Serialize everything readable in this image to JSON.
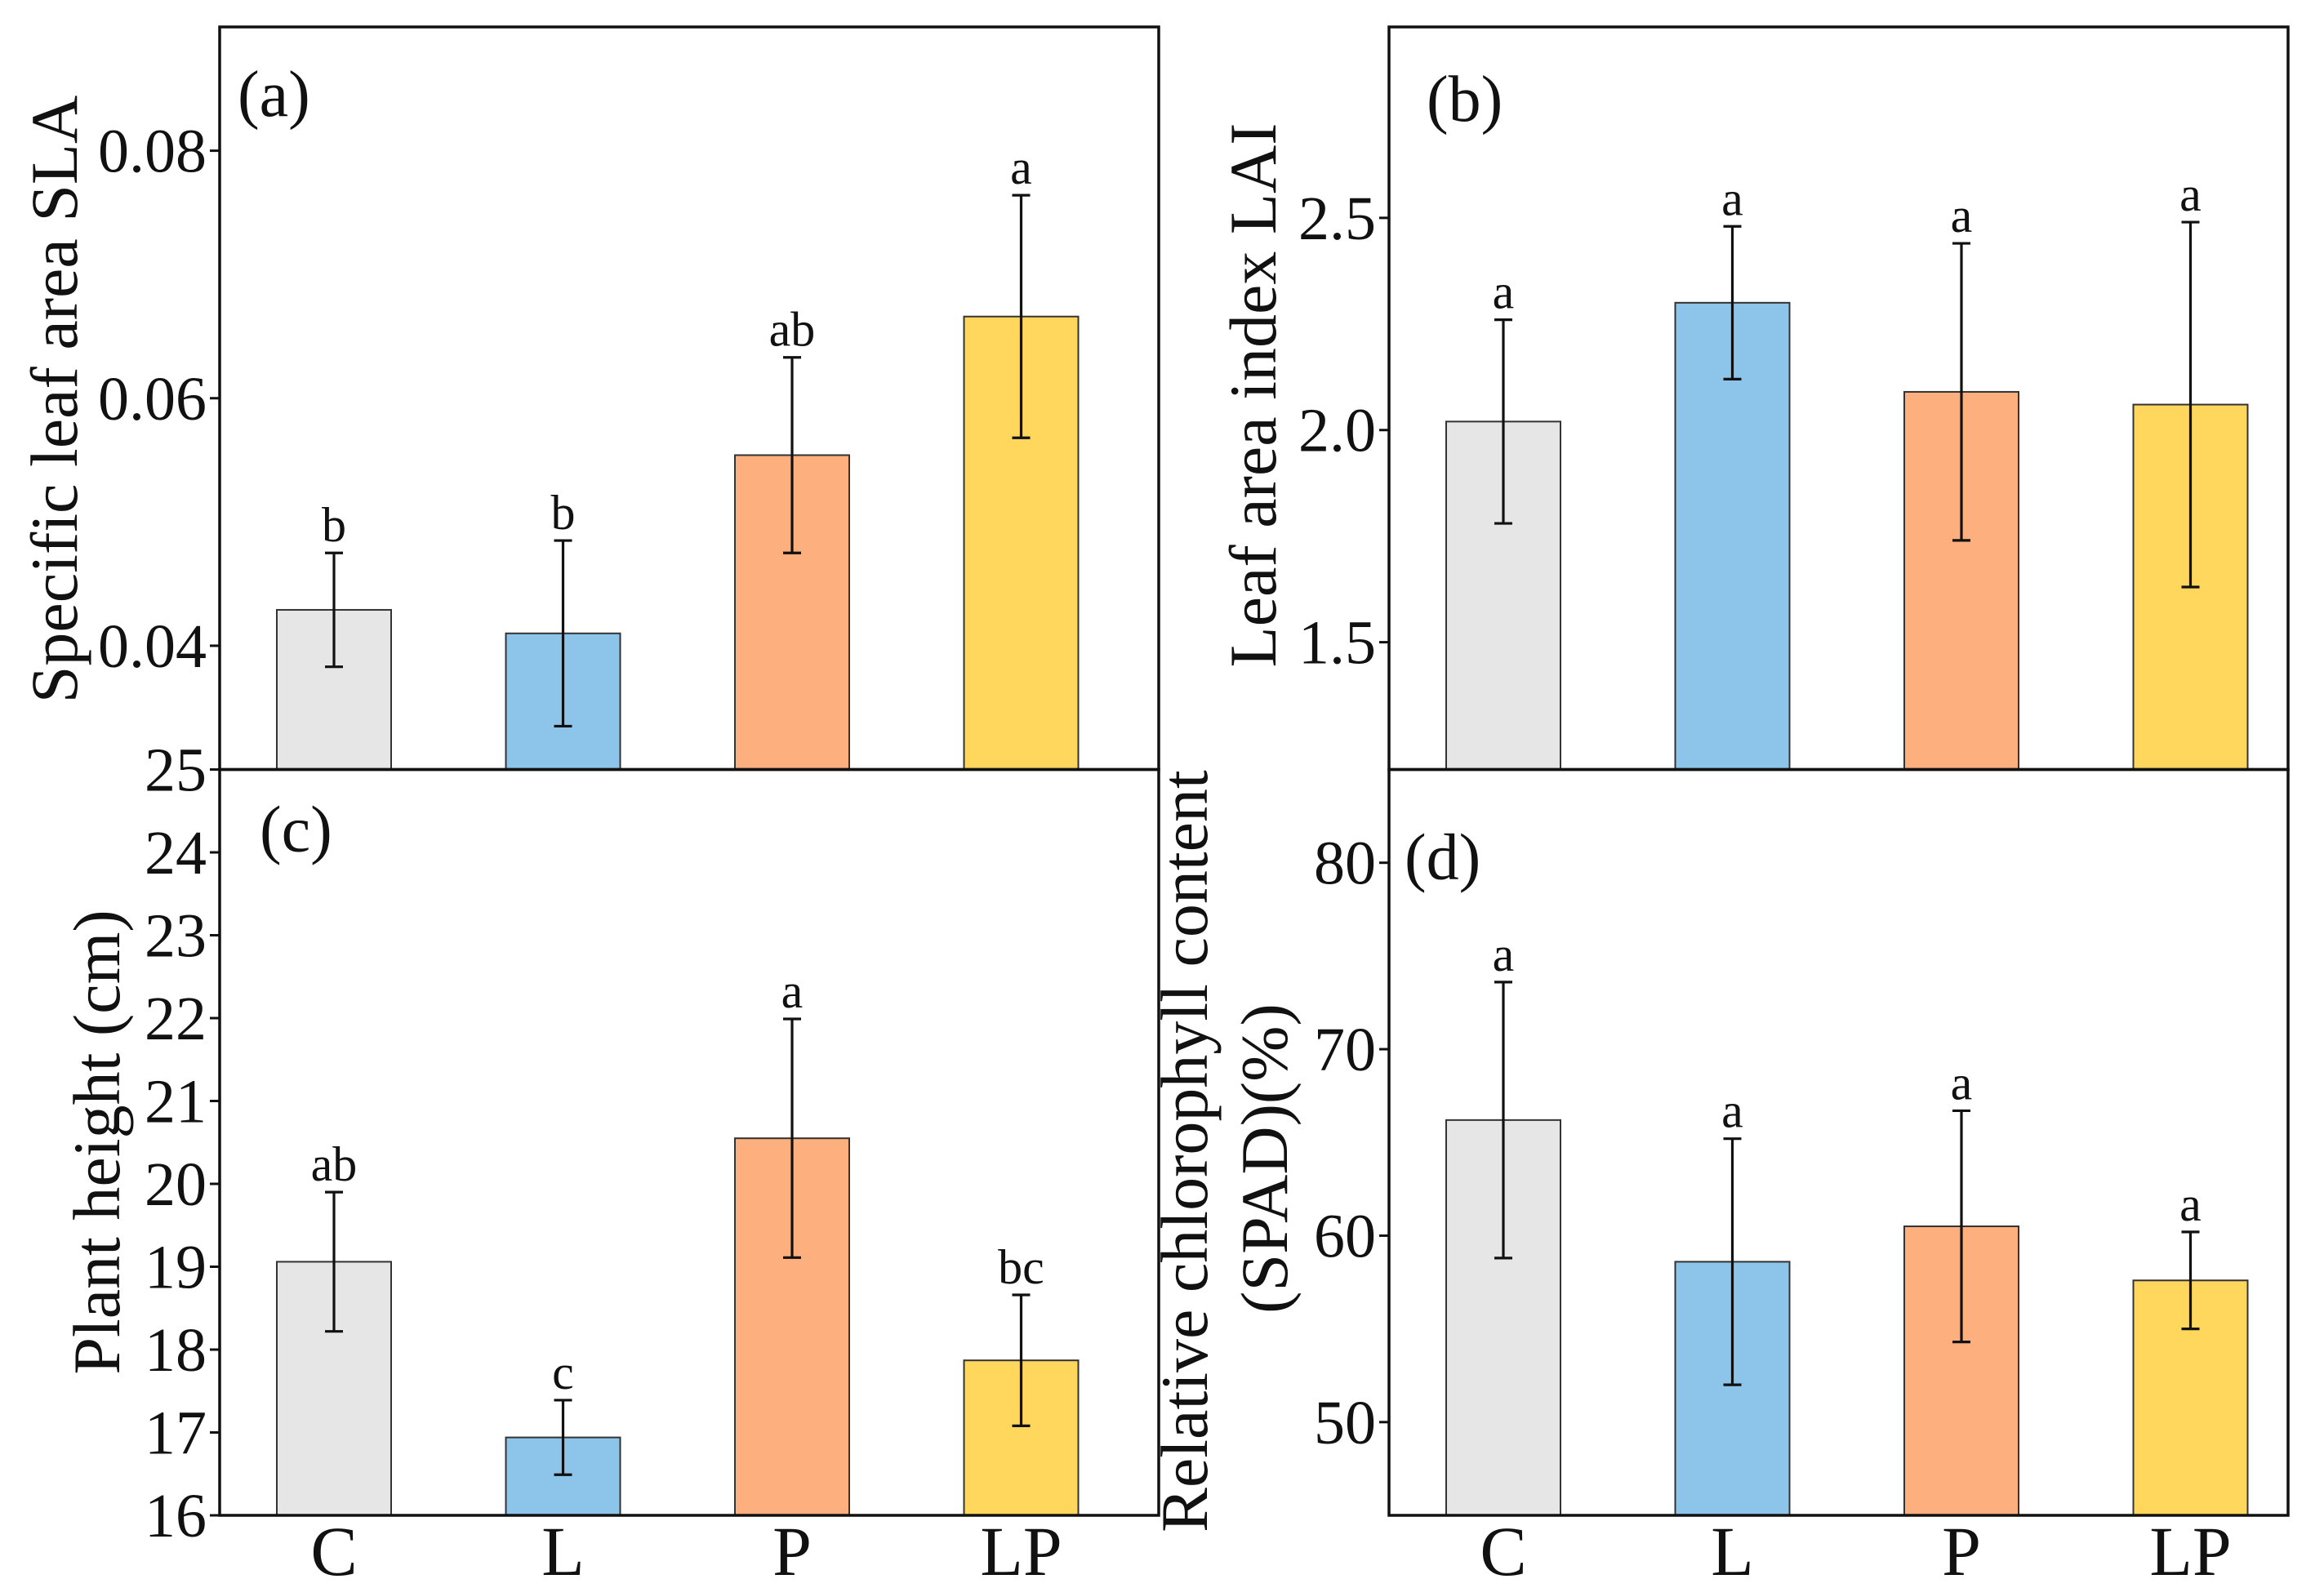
{
  "style": {
    "bar_colors": [
      "#e6e6e6",
      "#8dc4ea",
      "#fdb07e",
      "#ffd75c"
    ],
    "bar_edge_color": "#333333",
    "axis_color": "#111111"
  },
  "chart_data": [
    {
      "type": "bar",
      "panel_label": "(a)",
      "categories": [
        "C",
        "L",
        "P",
        "LP"
      ],
      "values": [
        0.0429,
        0.041,
        0.0554,
        0.0666
      ],
      "errors": [
        0.0046,
        0.0075,
        0.0079,
        0.0098
      ],
      "significance": [
        "b",
        "b",
        "ab",
        "a"
      ],
      "ylabel_lines": [
        "Specific leaf area SLA"
      ],
      "ylim": [
        0.03,
        0.09
      ],
      "yticks": [
        0.04,
        0.06,
        0.08
      ],
      "ytick_labels": [
        "0.04",
        "0.06",
        "0.08"
      ],
      "x_tick_labels_shown": false,
      "grid": false
    },
    {
      "type": "bar",
      "panel_label": "(b)",
      "categories": [
        "C",
        "L",
        "P",
        "LP"
      ],
      "values": [
        2.02,
        2.3,
        2.09,
        2.06
      ],
      "errors": [
        0.24,
        0.18,
        0.35,
        0.43
      ],
      "significance": [
        "a",
        "a",
        "a",
        "a"
      ],
      "ylabel_lines": [
        "Leaf area index LAI"
      ],
      "ylim": [
        1.2,
        2.95
      ],
      "yticks": [
        1.5,
        2.0,
        2.5
      ],
      "ytick_labels": [
        "1.5",
        "2.0",
        "2.5"
      ],
      "x_tick_labels_shown": false,
      "grid": false
    },
    {
      "type": "bar",
      "panel_label": "(c)",
      "categories": [
        "C",
        "L",
        "P",
        "LP"
      ],
      "values": [
        19.06,
        16.94,
        20.55,
        17.87
      ],
      "errors": [
        0.84,
        0.45,
        1.44,
        0.79
      ],
      "significance": [
        "ab",
        "c",
        "a",
        "bc"
      ],
      "ylabel_lines": [
        "Plant height (cm)"
      ],
      "ylim": [
        16,
        25
      ],
      "yticks": [
        16,
        17,
        18,
        19,
        20,
        21,
        22,
        23,
        24,
        25
      ],
      "ytick_labels": [
        "16",
        "17",
        "18",
        "19",
        "20",
        "21",
        "22",
        "23",
        "24",
        "25"
      ],
      "x_tick_labels_shown": true,
      "grid": false
    },
    {
      "type": "bar",
      "panel_label": "(d)",
      "categories": [
        "C",
        "L",
        "P",
        "LP"
      ],
      "values": [
        66.2,
        58.6,
        60.5,
        57.6
      ],
      "errors": [
        7.4,
        6.6,
        6.2,
        2.6
      ],
      "significance": [
        "a",
        "a",
        "a",
        "a"
      ],
      "ylabel_lines": [
        "Relative chlorophyll content",
        "(SPAD)(%)"
      ],
      "ylim": [
        45,
        85
      ],
      "yticks": [
        50,
        60,
        70,
        80
      ],
      "ytick_labels": [
        "50",
        "60",
        "70",
        "80"
      ],
      "x_tick_labels_shown": true,
      "grid": false
    }
  ]
}
